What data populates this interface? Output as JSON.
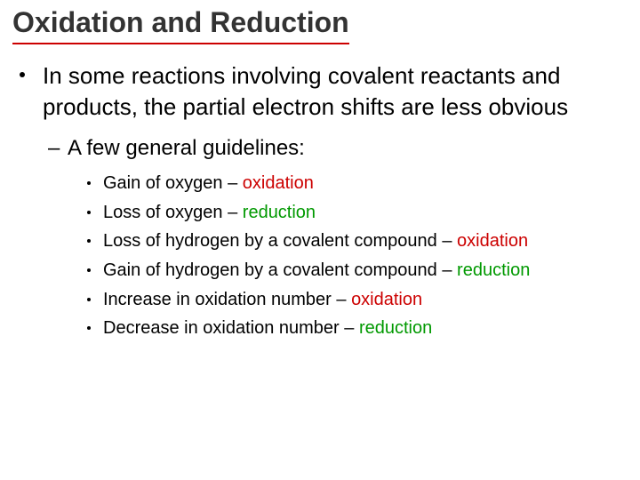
{
  "title": {
    "text": "Oxidation and Reduction",
    "underline_color": "#cc0000"
  },
  "colors": {
    "oxidation": "#cc0000",
    "reduction": "#009900",
    "text": "#000000"
  },
  "l1": {
    "text": "In some reactions involving covalent reactants and products, the partial electron shifts are less obvious"
  },
  "l2": {
    "text": "A few general guidelines:"
  },
  "guidelines": [
    {
      "pre": "Gain of oxygen – ",
      "key": "oxidation",
      "cls": "ox"
    },
    {
      "pre": "Loss of oxygen – ",
      "key": "reduction",
      "cls": "red"
    },
    {
      "pre": "Loss of hydrogen by a covalent compound – ",
      "key": "oxidation",
      "cls": "ox"
    },
    {
      "pre": "Gain of hydrogen by a covalent compound – ",
      "key": "reduction",
      "cls": "red"
    },
    {
      "pre": "Increase in oxidation number  – ",
      "key": "oxidation",
      "cls": "ox"
    },
    {
      "pre": "Decrease in oxidation number – ",
      "key": "reduction",
      "cls": "red"
    }
  ]
}
